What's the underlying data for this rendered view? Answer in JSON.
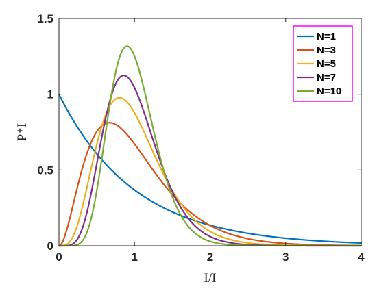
{
  "chart_data": {
    "type": "line",
    "title": "",
    "xlabel": "I/Ī",
    "ylabel": "P*Ī",
    "xlim": [
      0,
      4
    ],
    "ylim": [
      0,
      1.5
    ],
    "xticks": [
      "0",
      "1",
      "2",
      "3",
      "4"
    ],
    "yticks": [
      "0",
      "0.5",
      "1",
      "1.5"
    ],
    "grid": false,
    "legend": {
      "placement": "top-right",
      "border_color": "#ff00ff"
    },
    "series": [
      {
        "name": "N=1",
        "N": 1,
        "color": "#0072BD",
        "peak_y": 1.0
      },
      {
        "name": "N=3",
        "N": 3,
        "color": "#D95319",
        "peak_y": 0.81
      },
      {
        "name": "N=5",
        "N": 5,
        "color": "#EDB120",
        "peak_y": 0.98
      },
      {
        "name": "N=7",
        "N": 7,
        "color": "#7E2F8E",
        "peak_y": 1.12
      },
      {
        "name": "N=10",
        "N": 10,
        "color": "#77AC30",
        "peak_y": 1.32
      }
    ]
  }
}
